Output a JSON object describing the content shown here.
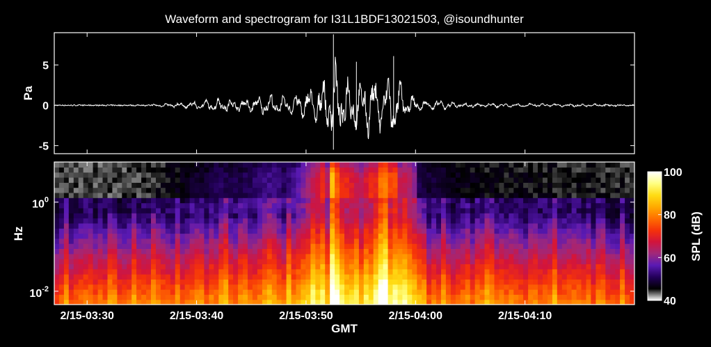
{
  "chart_data": [
    {
      "type": "line",
      "title": "Waveform and spectrogram for I31L1BDF13021503, @isoundhunter",
      "ylabel": "Pa",
      "ylim": [
        -6,
        9
      ],
      "yticks": [
        -5,
        0,
        5
      ],
      "line_color": "#ffffff",
      "background": "#000000",
      "time_range_min": [
        -23,
        30
      ],
      "series": [
        {
          "x_min": [
            -23,
            -20,
            -17,
            -14,
            -11,
            -9,
            -8,
            -7,
            -6,
            -5,
            -4,
            -3,
            -2,
            -1,
            0,
            1,
            1.5,
            2,
            2.5,
            3,
            3.5,
            4,
            5,
            6,
            7,
            8,
            9,
            10,
            11,
            12,
            14,
            17,
            20,
            23,
            26,
            30
          ],
          "y": [
            0,
            0,
            0,
            0.1,
            0.5,
            0.8,
            1.2,
            1.0,
            1.0,
            1.2,
            1.5,
            1.8,
            1.2,
            1.8,
            3.0,
            4.0,
            5.0,
            3.5,
            8.5,
            4.5,
            5.0,
            4.5,
            3.5,
            5.0,
            4.0,
            6.0,
            2.0,
            1.2,
            0.8,
            0.8,
            0.4,
            0.3,
            0.3,
            0.2,
            0.2,
            0.1
          ]
        }
      ]
    },
    {
      "type": "heatmap",
      "ylabel": "Hz",
      "xlabel": "GMT",
      "x_ticks": [
        "2/15-03:30",
        "2/15-03:40",
        "2/15-03:50",
        "2/15-04:00",
        "2/15-04:10"
      ],
      "y_ticks": [
        "10^0",
        "10^-2"
      ],
      "y_range_log10": [
        -2.3,
        0.9
      ],
      "time_range_min": [
        -23,
        30
      ],
      "colorbar": {
        "label": "SPL (dB)",
        "ticks": [
          40,
          60,
          80,
          100
        ],
        "range": [
          40,
          100
        ],
        "colors": [
          "#ffffff",
          "#000000",
          "#23005a",
          "#5a1ab4",
          "#a0287a",
          "#d2143c",
          "#f5320a",
          "#ff6e00",
          "#ffaa00",
          "#ffdc14",
          "#ffff82",
          "#ffffff"
        ]
      }
    }
  ]
}
